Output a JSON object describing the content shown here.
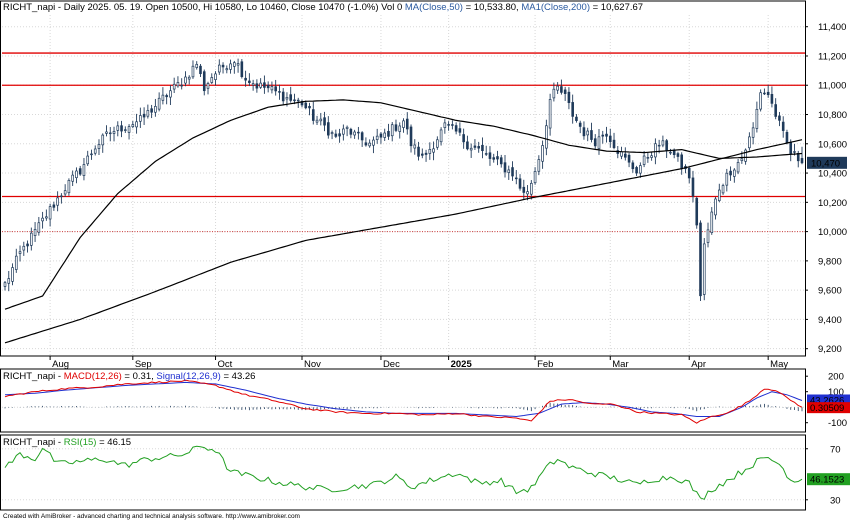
{
  "colors": {
    "background": "#ffffff",
    "grid": "#d8d8d8",
    "candle": "#1f3a5a",
    "candle_up_fill": "#ffffff",
    "ma50": "#000000",
    "ma200": "#000000",
    "resistance": "#e00000",
    "reference": "#d04040",
    "macd": "#e00000",
    "signal": "#2030d0",
    "histogram": "#1f3a5a",
    "rsi": "#22a022",
    "last_price_tag": "#1f3a5a",
    "signal_tag": "#2030d0",
    "macd_tag": "#e00000",
    "rsi_tag": "#22a022"
  },
  "chart_data": [
    {
      "type": "candlestick",
      "symbol": "RICHT_napi",
      "header": {
        "prefix": "RICHT_napi - Daily 2025. 05. 19. Open 10500, Hi 10580, Lo 10460, Close 10470 (-1.0%) Vol 0 ",
        "ma50_text": "MA(Close,50)",
        "ma50_value": " = 10,533.80, ",
        "ma200_text": "MA1(Close,200)",
        "ma200_value": " = 10,627.67"
      },
      "last_open": 10500,
      "last_high": 10580,
      "last_low": 10460,
      "last_close": 10470,
      "last_price_label": "10,470",
      "ma50_last": 10533.8,
      "ma200_last": 10627.67,
      "ylim": [
        9150,
        11480
      ],
      "y_ticks": [
        9200,
        9400,
        9600,
        9800,
        10000,
        10200,
        10400,
        10600,
        10800,
        11000,
        11200,
        11400
      ],
      "y_tick_labels": [
        "9,200",
        "9,400",
        "9,600",
        "9,800",
        "10,000",
        "10,200",
        "10,400",
        "10,600",
        "10,800",
        "11,000",
        "11,200",
        "11,400"
      ],
      "x_labels": [
        {
          "label": "Aug",
          "index": 12,
          "bold": false
        },
        {
          "label": "Sep",
          "index": 34,
          "bold": false
        },
        {
          "label": "Oct",
          "index": 56,
          "bold": false
        },
        {
          "label": "Nov",
          "index": 79,
          "bold": false
        },
        {
          "label": "Dec",
          "index": 100,
          "bold": false
        },
        {
          "label": "2025",
          "index": 118,
          "bold": true
        },
        {
          "label": "Feb",
          "index": 141,
          "bold": false
        },
        {
          "label": "Mar",
          "index": 161,
          "bold": false
        },
        {
          "label": "Apr",
          "index": 182,
          "bold": false
        },
        {
          "label": "May",
          "index": 203,
          "bold": false
        }
      ],
      "horizontal_lines": [
        11220,
        11000,
        10240
      ],
      "reference_line": 10000,
      "close_anchors": [
        [
          0,
          9640
        ],
        [
          4,
          9850
        ],
        [
          8,
          10000
        ],
        [
          12,
          10150
        ],
        [
          16,
          10300
        ],
        [
          20,
          10420
        ],
        [
          24,
          10580
        ],
        [
          28,
          10680
        ],
        [
          32,
          10720
        ],
        [
          36,
          10760
        ],
        [
          40,
          10860
        ],
        [
          44,
          10960
        ],
        [
          48,
          11050
        ],
        [
          51,
          11150
        ],
        [
          53,
          10980
        ],
        [
          55,
          11060
        ],
        [
          58,
          11130
        ],
        [
          61,
          11180
        ],
        [
          64,
          11050
        ],
        [
          67,
          11000
        ],
        [
          70,
          10980
        ],
        [
          73,
          10940
        ],
        [
          76,
          10900
        ],
        [
          79,
          10880
        ],
        [
          82,
          10780
        ],
        [
          85,
          10720
        ],
        [
          88,
          10640
        ],
        [
          91,
          10700
        ],
        [
          94,
          10640
        ],
        [
          97,
          10600
        ],
        [
          100,
          10640
        ],
        [
          103,
          10700
        ],
        [
          106,
          10760
        ],
        [
          108,
          10600
        ],
        [
          111,
          10500
        ],
        [
          114,
          10600
        ],
        [
          117,
          10720
        ],
        [
          120,
          10680
        ],
        [
          123,
          10600
        ],
        [
          126,
          10560
        ],
        [
          129,
          10500
        ],
        [
          132,
          10450
        ],
        [
          135,
          10400
        ],
        [
          137,
          10300
        ],
        [
          139,
          10260
        ],
        [
          141,
          10420
        ],
        [
          143,
          10600
        ],
        [
          145,
          10900
        ],
        [
          147,
          10980
        ],
        [
          149,
          10920
        ],
        [
          151,
          10800
        ],
        [
          154,
          10680
        ],
        [
          157,
          10620
        ],
        [
          160,
          10680
        ],
        [
          163,
          10560
        ],
        [
          166,
          10460
        ],
        [
          168,
          10420
        ],
        [
          171,
          10520
        ],
        [
          174,
          10600
        ],
        [
          177,
          10560
        ],
        [
          179,
          10480
        ],
        [
          182,
          10380
        ],
        [
          184,
          10060
        ],
        [
          185,
          9560
        ],
        [
          186,
          9900
        ],
        [
          188,
          10120
        ],
        [
          190,
          10300
        ],
        [
          193,
          10420
        ],
        [
          196,
          10500
        ],
        [
          199,
          10700
        ],
        [
          201,
          10960
        ],
        [
          203,
          10940
        ],
        [
          205,
          10800
        ],
        [
          207,
          10660
        ],
        [
          209,
          10540
        ],
        [
          211,
          10500
        ],
        [
          212,
          10470
        ]
      ],
      "ma50_anchors": [
        [
          0,
          9470
        ],
        [
          10,
          9560
        ],
        [
          20,
          9960
        ],
        [
          30,
          10260
        ],
        [
          40,
          10480
        ],
        [
          50,
          10640
        ],
        [
          60,
          10760
        ],
        [
          70,
          10850
        ],
        [
          80,
          10890
        ],
        [
          90,
          10900
        ],
        [
          100,
          10880
        ],
        [
          110,
          10820
        ],
        [
          120,
          10760
        ],
        [
          130,
          10720
        ],
        [
          140,
          10660
        ],
        [
          150,
          10590
        ],
        [
          160,
          10550
        ],
        [
          170,
          10540
        ],
        [
          180,
          10560
        ],
        [
          190,
          10500
        ],
        [
          200,
          10510
        ],
        [
          212,
          10533.8
        ]
      ],
      "ma200_anchors": [
        [
          0,
          9240
        ],
        [
          20,
          9400
        ],
        [
          40,
          9590
        ],
        [
          60,
          9790
        ],
        [
          80,
          9940
        ],
        [
          100,
          10030
        ],
        [
          120,
          10120
        ],
        [
          140,
          10230
        ],
        [
          160,
          10330
        ],
        [
          180,
          10430
        ],
        [
          200,
          10560
        ],
        [
          212,
          10627.67
        ]
      ]
    },
    {
      "type": "line",
      "title_prefix": "RICHT_napi - ",
      "macd_name": "MACD(12,26)",
      "macd_value": " = 0.31, ",
      "signal_name": "Signal(12,26,9)",
      "signal_value": " = 43.26",
      "ylim": [
        -160,
        240
      ],
      "y_ticks": [
        200,
        100,
        -100
      ],
      "y_tick_labels": [
        "200",
        "100",
        "-100"
      ],
      "signal_tag": "43.2626",
      "macd_tag": "0.30509",
      "macd_anchors": [
        [
          0,
          70
        ],
        [
          8,
          100
        ],
        [
          16,
          120
        ],
        [
          24,
          130
        ],
        [
          32,
          150
        ],
        [
          40,
          160
        ],
        [
          48,
          170
        ],
        [
          56,
          140
        ],
        [
          64,
          80
        ],
        [
          72,
          40
        ],
        [
          80,
          -10
        ],
        [
          88,
          -30
        ],
        [
          96,
          -40
        ],
        [
          104,
          -40
        ],
        [
          112,
          -50
        ],
        [
          120,
          -40
        ],
        [
          128,
          -60
        ],
        [
          136,
          -70
        ],
        [
          140,
          -90
        ],
        [
          145,
          40
        ],
        [
          150,
          50
        ],
        [
          156,
          20
        ],
        [
          162,
          20
        ],
        [
          168,
          -30
        ],
        [
          174,
          -40
        ],
        [
          180,
          -50
        ],
        [
          184,
          -100
        ],
        [
          188,
          -60
        ],
        [
          193,
          -30
        ],
        [
          198,
          40
        ],
        [
          202,
          120
        ],
        [
          205,
          110
        ],
        [
          208,
          60
        ],
        [
          212,
          0.31
        ]
      ],
      "signal_anchors": [
        [
          0,
          80
        ],
        [
          8,
          90
        ],
        [
          16,
          110
        ],
        [
          24,
          125
        ],
        [
          32,
          140
        ],
        [
          40,
          150
        ],
        [
          48,
          160
        ],
        [
          56,
          150
        ],
        [
          64,
          110
        ],
        [
          72,
          60
        ],
        [
          80,
          20
        ],
        [
          88,
          -10
        ],
        [
          96,
          -30
        ],
        [
          104,
          -40
        ],
        [
          112,
          -40
        ],
        [
          120,
          -40
        ],
        [
          128,
          -50
        ],
        [
          136,
          -60
        ],
        [
          142,
          -40
        ],
        [
          148,
          20
        ],
        [
          154,
          30
        ],
        [
          160,
          20
        ],
        [
          166,
          0
        ],
        [
          172,
          -30
        ],
        [
          178,
          -40
        ],
        [
          184,
          -60
        ],
        [
          190,
          -60
        ],
        [
          196,
          0
        ],
        [
          200,
          60
        ],
        [
          204,
          100
        ],
        [
          208,
          80
        ],
        [
          212,
          43.26
        ]
      ]
    },
    {
      "type": "line",
      "title_prefix": "RICHT_napi - ",
      "rsi_name": "RSI(15)",
      "rsi_value": " = 46.15",
      "ylim": [
        22,
        80
      ],
      "y_ticks": [
        70,
        30
      ],
      "y_tick_labels": [
        "70",
        "30"
      ],
      "rsi_tag": "46.1523",
      "rsi_anchors": [
        [
          0,
          55
        ],
        [
          4,
          66
        ],
        [
          8,
          62
        ],
        [
          10,
          71
        ],
        [
          14,
          58
        ],
        [
          20,
          60
        ],
        [
          26,
          62
        ],
        [
          32,
          57
        ],
        [
          38,
          62
        ],
        [
          44,
          64
        ],
        [
          48,
          66
        ],
        [
          52,
          72
        ],
        [
          56,
          69
        ],
        [
          60,
          52
        ],
        [
          66,
          48
        ],
        [
          72,
          44
        ],
        [
          80,
          40
        ],
        [
          86,
          38
        ],
        [
          92,
          40
        ],
        [
          98,
          42
        ],
        [
          104,
          48
        ],
        [
          108,
          40
        ],
        [
          114,
          46
        ],
        [
          120,
          51
        ],
        [
          126,
          43
        ],
        [
          132,
          45
        ],
        [
          136,
          36
        ],
        [
          140,
          39
        ],
        [
          144,
          55
        ],
        [
          147,
          62
        ],
        [
          150,
          56
        ],
        [
          156,
          51
        ],
        [
          162,
          47
        ],
        [
          168,
          42
        ],
        [
          172,
          46
        ],
        [
          178,
          48
        ],
        [
          182,
          43
        ],
        [
          185,
          30
        ],
        [
          188,
          38
        ],
        [
          192,
          45
        ],
        [
          196,
          52
        ],
        [
          200,
          60
        ],
        [
          203,
          63
        ],
        [
          206,
          58
        ],
        [
          208,
          50
        ],
        [
          210,
          44
        ],
        [
          212,
          46.15
        ]
      ]
    }
  ],
  "footer_text": "Created with AmiBroker - advanced charting and technical analysis software. http://www.amibroker.com"
}
